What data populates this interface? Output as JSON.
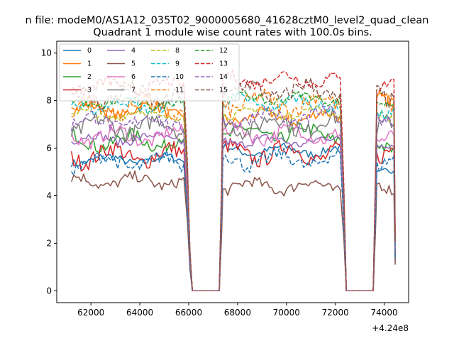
{
  "chart_data": {
    "type": "line",
    "suptitle": "n file: modeM0/AS1A12_035T02_9000005680_41628cztM0_level2_quad_clean",
    "title": "Quadrant 1 module wise count rates with 100.0s bins.",
    "xlabel": "",
    "ylabel": "",
    "x_offset_label": "+4.24e8",
    "xlim": [
      60600,
      75000
    ],
    "ylim": [
      -0.5,
      10.5
    ],
    "x_ticks": [
      62000,
      64000,
      66000,
      68000,
      70000,
      72000,
      74000
    ],
    "x_tick_labels": [
      "62000",
      "64000",
      "66000",
      "68000",
      "70000",
      "72000",
      "74000"
    ],
    "y_ticks": [
      0,
      2,
      4,
      6,
      8,
      10
    ],
    "y_tick_labels": [
      "0",
      "2",
      "4",
      "6",
      "8",
      "10"
    ],
    "legend_position": "upper-left",
    "legend_columns": 4,
    "segments": [
      {
        "x_start": 61200,
        "x_end": 65800
      },
      {
        "x_start": 67400,
        "x_end": 72200
      },
      {
        "x_start": 73700,
        "x_end": 74400
      }
    ],
    "drop_points": [
      {
        "x": 65950,
        "y_fraction": 0.62
      },
      {
        "x": 66050,
        "y_fraction": 0.2
      },
      {
        "x": 66150,
        "y": 0
      },
      {
        "x": 67250,
        "y": 0
      },
      {
        "x": 67350,
        "y_fraction": 0.55
      },
      {
        "x": 72350,
        "y_fraction": 0.5
      },
      {
        "x": 72450,
        "y": 0
      },
      {
        "x": 73550,
        "y": 0
      },
      {
        "x": 73650,
        "y_fraction": 0.6
      },
      {
        "x": 74450,
        "y_fraction": 0.25
      }
    ],
    "series": [
      {
        "name": "0",
        "color": "#1f77b4",
        "dash": false,
        "levels": [
          5.5,
          5.9,
          5.0
        ]
      },
      {
        "name": "1",
        "color": "#ff7f0e",
        "dash": false,
        "levels": [
          7.6,
          7.3,
          7.9
        ]
      },
      {
        "name": "2",
        "color": "#2ca02c",
        "dash": false,
        "levels": [
          6.3,
          6.6,
          6.2
        ]
      },
      {
        "name": "3",
        "color": "#d62728",
        "dash": false,
        "levels": [
          5.7,
          5.8,
          5.9
        ]
      },
      {
        "name": "4",
        "color": "#9467bd",
        "dash": false,
        "levels": [
          6.4,
          6.3,
          6.0
        ]
      },
      {
        "name": "5",
        "color": "#8c564b",
        "dash": false,
        "levels": [
          4.6,
          4.4,
          4.4
        ]
      },
      {
        "name": "6",
        "color": "#e377c2",
        "dash": false,
        "levels": [
          6.5,
          6.6,
          6.6
        ]
      },
      {
        "name": "7",
        "color": "#7f7f7f",
        "dash": false,
        "levels": [
          6.9,
          7.0,
          6.8
        ]
      },
      {
        "name": "8",
        "color": "#bcbd22",
        "dash": true,
        "levels": [
          7.4,
          7.5,
          7.3
        ]
      },
      {
        "name": "9",
        "color": "#17becf",
        "dash": true,
        "levels": [
          7.8,
          7.9,
          7.6
        ]
      },
      {
        "name": "10",
        "color": "#1f77b4",
        "dash": true,
        "levels": [
          5.4,
          5.5,
          5.3
        ]
      },
      {
        "name": "11",
        "color": "#ff7f0e",
        "dash": true,
        "levels": [
          7.7,
          7.9,
          7.8
        ]
      },
      {
        "name": "12",
        "color": "#2ca02c",
        "dash": true,
        "levels": [
          7.9,
          8.1,
          8.0
        ]
      },
      {
        "name": "13",
        "color": "#d62728",
        "dash": true,
        "levels": [
          8.6,
          8.9,
          8.7
        ]
      },
      {
        "name": "14",
        "color": "#9467bd",
        "dash": true,
        "levels": [
          7.1,
          7.3,
          7.0
        ]
      },
      {
        "name": "15",
        "color": "#8c564b",
        "dash": true,
        "levels": [
          8.2,
          8.4,
          8.3
        ]
      }
    ]
  }
}
